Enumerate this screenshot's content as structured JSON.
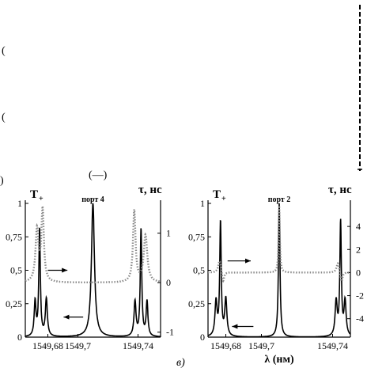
{
  "top_fragments": [
    "(",
    "(",
    ")",
    "(—)"
  ],
  "chart_data": [
    {
      "type": "line",
      "panel_label": "",
      "left_axis_label": "T",
      "left_axis_sub": "+",
      "right_axis_label": "τ, нс",
      "annotation": "порт 4",
      "xlabel": "",
      "x_ticks": [
        "1549,68",
        "1549,7",
        "1549,74"
      ],
      "x_tick_values": [
        1549.68,
        1549.7,
        1549.74
      ],
      "xlim": [
        1549.665,
        1549.755
      ],
      "left_ticks": [
        "0",
        "0,25",
        "0,5",
        "0,75",
        "1"
      ],
      "left_tick_values": [
        0,
        0.25,
        0.5,
        0.75,
        1
      ],
      "ylim_left": [
        0,
        1.0
      ],
      "right_ticks": [
        "-1",
        "0",
        "1"
      ],
      "right_tick_values": [
        -1,
        0,
        1
      ],
      "ylim_right": [
        -1.1,
        1.6
      ],
      "series": [
        {
          "axis": "left",
          "style": "solid",
          "peaks": [
            {
              "x0": 1549.6715,
              "a": 0.26,
              "w": 0.0007
            },
            {
              "x0": 1549.6745,
              "a": 0.8,
              "w": 0.0006
            },
            {
              "x0": 1549.679,
              "a": 0.28,
              "w": 0.0008
            },
            {
              "x0": 1549.71,
              "a": 1.0,
              "w": 0.0012
            },
            {
              "x0": 1549.738,
              "a": 0.26,
              "w": 0.0008
            },
            {
              "x0": 1549.742,
              "a": 0.8,
              "w": 0.0006
            },
            {
              "x0": 1549.746,
              "a": 0.26,
              "w": 0.0007
            }
          ]
        },
        {
          "axis": "right",
          "style": "dotted",
          "baseline": 0.0,
          "peaks": [
            {
              "x0": 1549.6728,
              "a": 1.05,
              "w": 0.0012
            },
            {
              "x0": 1549.6765,
              "a": 1.45,
              "w": 0.001
            },
            {
              "x0": 1549.7375,
              "a": 1.45,
              "w": 0.001
            },
            {
              "x0": 1549.745,
              "a": 0.95,
              "w": 0.0014
            }
          ]
        }
      ],
      "arrows": [
        {
          "x": 1549.68,
          "y": 0.5,
          "dir": "right",
          "len": 0.013
        },
        {
          "x": 1549.7035,
          "y": 0.15,
          "dir": "left",
          "len": 0.013
        }
      ]
    },
    {
      "type": "line",
      "panel_label": "в)",
      "left_axis_label": "T",
      "left_axis_sub": "+",
      "right_axis_label": "τ, нс",
      "annotation": "порт 2",
      "xlabel": "λ (нм)",
      "x_ticks": [
        "1549,68",
        "1549,7",
        "1549,74"
      ],
      "x_tick_values": [
        1549.68,
        1549.7,
        1549.74
      ],
      "xlim": [
        1549.67,
        1549.75
      ],
      "left_ticks": [
        "0",
        "0,25",
        "0,5",
        "0,75",
        "1"
      ],
      "left_tick_values": [
        0,
        0.25,
        0.5,
        0.75,
        1
      ],
      "ylim_left": [
        0,
        1.0
      ],
      "right_ticks": [
        "-4",
        "-2",
        "0",
        "2",
        "4"
      ],
      "right_tick_values": [
        -4,
        -2,
        0,
        2,
        4
      ],
      "ylim_right": [
        -5.6,
        6.0
      ],
      "series": [
        {
          "axis": "left",
          "style": "solid",
          "peaks": [
            {
              "x0": 1549.6745,
              "a": 0.26,
              "w": 0.0007
            },
            {
              "x0": 1549.677,
              "a": 0.85,
              "w": 0.0005
            },
            {
              "x0": 1549.68,
              "a": 0.28,
              "w": 0.0007
            },
            {
              "x0": 1549.71,
              "a": 1.0,
              "w": 0.0005
            },
            {
              "x0": 1549.742,
              "a": 0.26,
              "w": 0.0007
            },
            {
              "x0": 1549.7445,
              "a": 0.85,
              "w": 0.0005
            },
            {
              "x0": 1549.747,
              "a": 0.26,
              "w": 0.0007
            }
          ]
        },
        {
          "axis": "right",
          "style": "dotted",
          "baseline": 0.0,
          "peaks": [
            {
              "x0": 1549.6765,
              "a": 1.1,
              "w": 0.0009
            },
            {
              "x0": 1549.6785,
              "a": -0.9,
              "w": 0.0007
            },
            {
              "x0": 1549.71,
              "a": 5.8,
              "w": 0.0004
            },
            {
              "x0": 1549.743,
              "a": 0.9,
              "w": 0.0009
            },
            {
              "x0": 1549.745,
              "a": -0.9,
              "w": 0.0007
            }
          ]
        }
      ],
      "arrows": [
        {
          "x": 1549.681,
          "y": 0.57,
          "dir": "right",
          "len": 0.013
        },
        {
          "x": 1549.6955,
          "y": 0.08,
          "dir": "left",
          "len": 0.012
        }
      ]
    }
  ]
}
